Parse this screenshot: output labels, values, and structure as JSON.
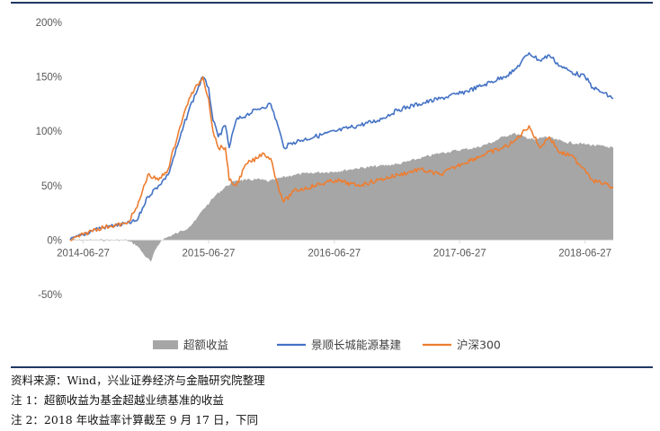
{
  "chart_data": {
    "type": "area",
    "x_axis": {
      "start": "2014-05-20",
      "end": "2018-09-17",
      "tick_labels": [
        "2014-06-27",
        "2015-06-27",
        "2016-06-27",
        "2017-06-27",
        "2018-06-27"
      ]
    },
    "y_axis": {
      "ylim": [
        -0.5,
        2.0
      ],
      "tick_labels": [
        "200%",
        "150%",
        "100%",
        "50%",
        "0%",
        "-50%"
      ],
      "tick_values": [
        2.0,
        1.5,
        1.0,
        0.5,
        0.0,
        -0.5
      ]
    },
    "legend": {
      "position": "bottom"
    },
    "series": [
      {
        "name": "超额收益",
        "kind": "area",
        "color": "#a6a6a6",
        "points": [
          [
            "2014-05-20",
            0.0
          ],
          [
            "2014-07-15",
            0.0
          ],
          [
            "2014-09-01",
            0.0
          ],
          [
            "2014-11-01",
            0.0
          ],
          [
            "2014-12-01",
            -0.05
          ],
          [
            "2014-12-20",
            -0.13
          ],
          [
            "2015-01-10",
            -0.2
          ],
          [
            "2015-01-25",
            -0.08
          ],
          [
            "2015-02-10",
            0.0
          ],
          [
            "2015-03-01",
            0.03
          ],
          [
            "2015-04-01",
            0.07
          ],
          [
            "2015-05-01",
            0.12
          ],
          [
            "2015-05-20",
            0.18
          ],
          [
            "2015-06-10",
            0.28
          ],
          [
            "2015-07-01",
            0.35
          ],
          [
            "2015-07-20",
            0.42
          ],
          [
            "2015-08-20",
            0.5
          ],
          [
            "2015-09-15",
            0.55
          ],
          [
            "2015-10-15",
            0.55
          ],
          [
            "2015-11-15",
            0.56
          ],
          [
            "2015-12-20",
            0.54
          ],
          [
            "2016-01-20",
            0.57
          ],
          [
            "2016-03-01",
            0.6
          ],
          [
            "2016-05-01",
            0.62
          ],
          [
            "2016-07-01",
            0.63
          ],
          [
            "2016-09-01",
            0.66
          ],
          [
            "2016-11-01",
            0.68
          ],
          [
            "2017-01-01",
            0.7
          ],
          [
            "2017-03-01",
            0.75
          ],
          [
            "2017-05-01",
            0.8
          ],
          [
            "2017-07-01",
            0.83
          ],
          [
            "2017-08-15",
            0.85
          ],
          [
            "2017-10-01",
            0.9
          ],
          [
            "2017-11-01",
            0.95
          ],
          [
            "2017-12-01",
            0.98
          ],
          [
            "2018-01-01",
            0.95
          ],
          [
            "2018-02-01",
            0.92
          ],
          [
            "2018-03-01",
            0.95
          ],
          [
            "2018-05-01",
            0.9
          ],
          [
            "2018-07-01",
            0.88
          ],
          [
            "2018-09-17",
            0.85
          ]
        ]
      },
      {
        "name": "景顺长城能源基建",
        "kind": "line",
        "color": "#4472c4",
        "points": [
          [
            "2014-05-20",
            0.0
          ],
          [
            "2014-06-27",
            0.05
          ],
          [
            "2014-08-01",
            0.1
          ],
          [
            "2014-09-15",
            0.13
          ],
          [
            "2014-11-01",
            0.15
          ],
          [
            "2014-12-01",
            0.18
          ],
          [
            "2015-01-01",
            0.4
          ],
          [
            "2015-02-01",
            0.5
          ],
          [
            "2015-03-01",
            0.6
          ],
          [
            "2015-04-01",
            0.9
          ],
          [
            "2015-05-01",
            1.2
          ],
          [
            "2015-06-10",
            1.5
          ],
          [
            "2015-06-27",
            1.4
          ],
          [
            "2015-07-10",
            1.1
          ],
          [
            "2015-07-25",
            0.95
          ],
          [
            "2015-08-15",
            1.05
          ],
          [
            "2015-08-26",
            0.85
          ],
          [
            "2015-09-15",
            1.1
          ],
          [
            "2015-10-15",
            1.15
          ],
          [
            "2015-11-15",
            1.2
          ],
          [
            "2015-12-01",
            1.22
          ],
          [
            "2015-12-25",
            1.25
          ],
          [
            "2016-01-15",
            1.05
          ],
          [
            "2016-02-01",
            0.85
          ],
          [
            "2016-03-01",
            0.9
          ],
          [
            "2016-05-01",
            0.95
          ],
          [
            "2016-07-01",
            1.0
          ],
          [
            "2016-09-01",
            1.05
          ],
          [
            "2016-11-01",
            1.1
          ],
          [
            "2017-01-01",
            1.2
          ],
          [
            "2017-03-01",
            1.25
          ],
          [
            "2017-05-01",
            1.3
          ],
          [
            "2017-07-01",
            1.35
          ],
          [
            "2017-09-01",
            1.42
          ],
          [
            "2017-11-01",
            1.5
          ],
          [
            "2017-12-01",
            1.55
          ],
          [
            "2018-01-15",
            1.72
          ],
          [
            "2018-02-15",
            1.65
          ],
          [
            "2018-03-15",
            1.7
          ],
          [
            "2018-04-15",
            1.6
          ],
          [
            "2018-05-15",
            1.55
          ],
          [
            "2018-06-27",
            1.5
          ],
          [
            "2018-07-20",
            1.4
          ],
          [
            "2018-08-20",
            1.35
          ],
          [
            "2018-09-17",
            1.3
          ]
        ]
      },
      {
        "name": "沪深300",
        "kind": "line",
        "color": "#ed7d31",
        "points": [
          [
            "2014-05-20",
            0.0
          ],
          [
            "2014-06-27",
            0.05
          ],
          [
            "2014-08-01",
            0.1
          ],
          [
            "2014-09-15",
            0.13
          ],
          [
            "2014-11-01",
            0.15
          ],
          [
            "2014-12-01",
            0.3
          ],
          [
            "2015-01-01",
            0.6
          ],
          [
            "2015-02-01",
            0.55
          ],
          [
            "2015-03-01",
            0.65
          ],
          [
            "2015-04-01",
            1.0
          ],
          [
            "2015-05-01",
            1.3
          ],
          [
            "2015-06-10",
            1.5
          ],
          [
            "2015-06-27",
            1.3
          ],
          [
            "2015-07-10",
            1.0
          ],
          [
            "2015-07-25",
            0.85
          ],
          [
            "2015-08-15",
            0.85
          ],
          [
            "2015-08-26",
            0.55
          ],
          [
            "2015-09-15",
            0.5
          ],
          [
            "2015-10-15",
            0.7
          ],
          [
            "2015-11-15",
            0.75
          ],
          [
            "2015-12-01",
            0.8
          ],
          [
            "2015-12-25",
            0.75
          ],
          [
            "2016-01-15",
            0.5
          ],
          [
            "2016-02-01",
            0.35
          ],
          [
            "2016-03-01",
            0.45
          ],
          [
            "2016-05-01",
            0.5
          ],
          [
            "2016-07-01",
            0.55
          ],
          [
            "2016-09-01",
            0.5
          ],
          [
            "2016-11-01",
            0.55
          ],
          [
            "2017-01-01",
            0.6
          ],
          [
            "2017-03-01",
            0.65
          ],
          [
            "2017-05-01",
            0.6
          ],
          [
            "2017-07-01",
            0.7
          ],
          [
            "2017-09-01",
            0.78
          ],
          [
            "2017-11-01",
            0.85
          ],
          [
            "2017-12-01",
            0.9
          ],
          [
            "2018-01-15",
            1.05
          ],
          [
            "2018-02-15",
            0.85
          ],
          [
            "2018-03-15",
            0.95
          ],
          [
            "2018-04-15",
            0.8
          ],
          [
            "2018-05-15",
            0.78
          ],
          [
            "2018-06-27",
            0.65
          ],
          [
            "2018-07-20",
            0.55
          ],
          [
            "2018-08-20",
            0.52
          ],
          [
            "2018-09-17",
            0.48
          ]
        ]
      }
    ]
  },
  "notes": {
    "line1": "资料来源：Wind，兴业证券经济与金融研究院整理",
    "line2": "注 1：超额收益为基金超越业绩基准的收益",
    "line3": "注 2：2018 年收益率计算截至 9 月 17 日，下同"
  },
  "colors": {
    "rule": "#1f3864",
    "axis": "#d9d9d9"
  }
}
